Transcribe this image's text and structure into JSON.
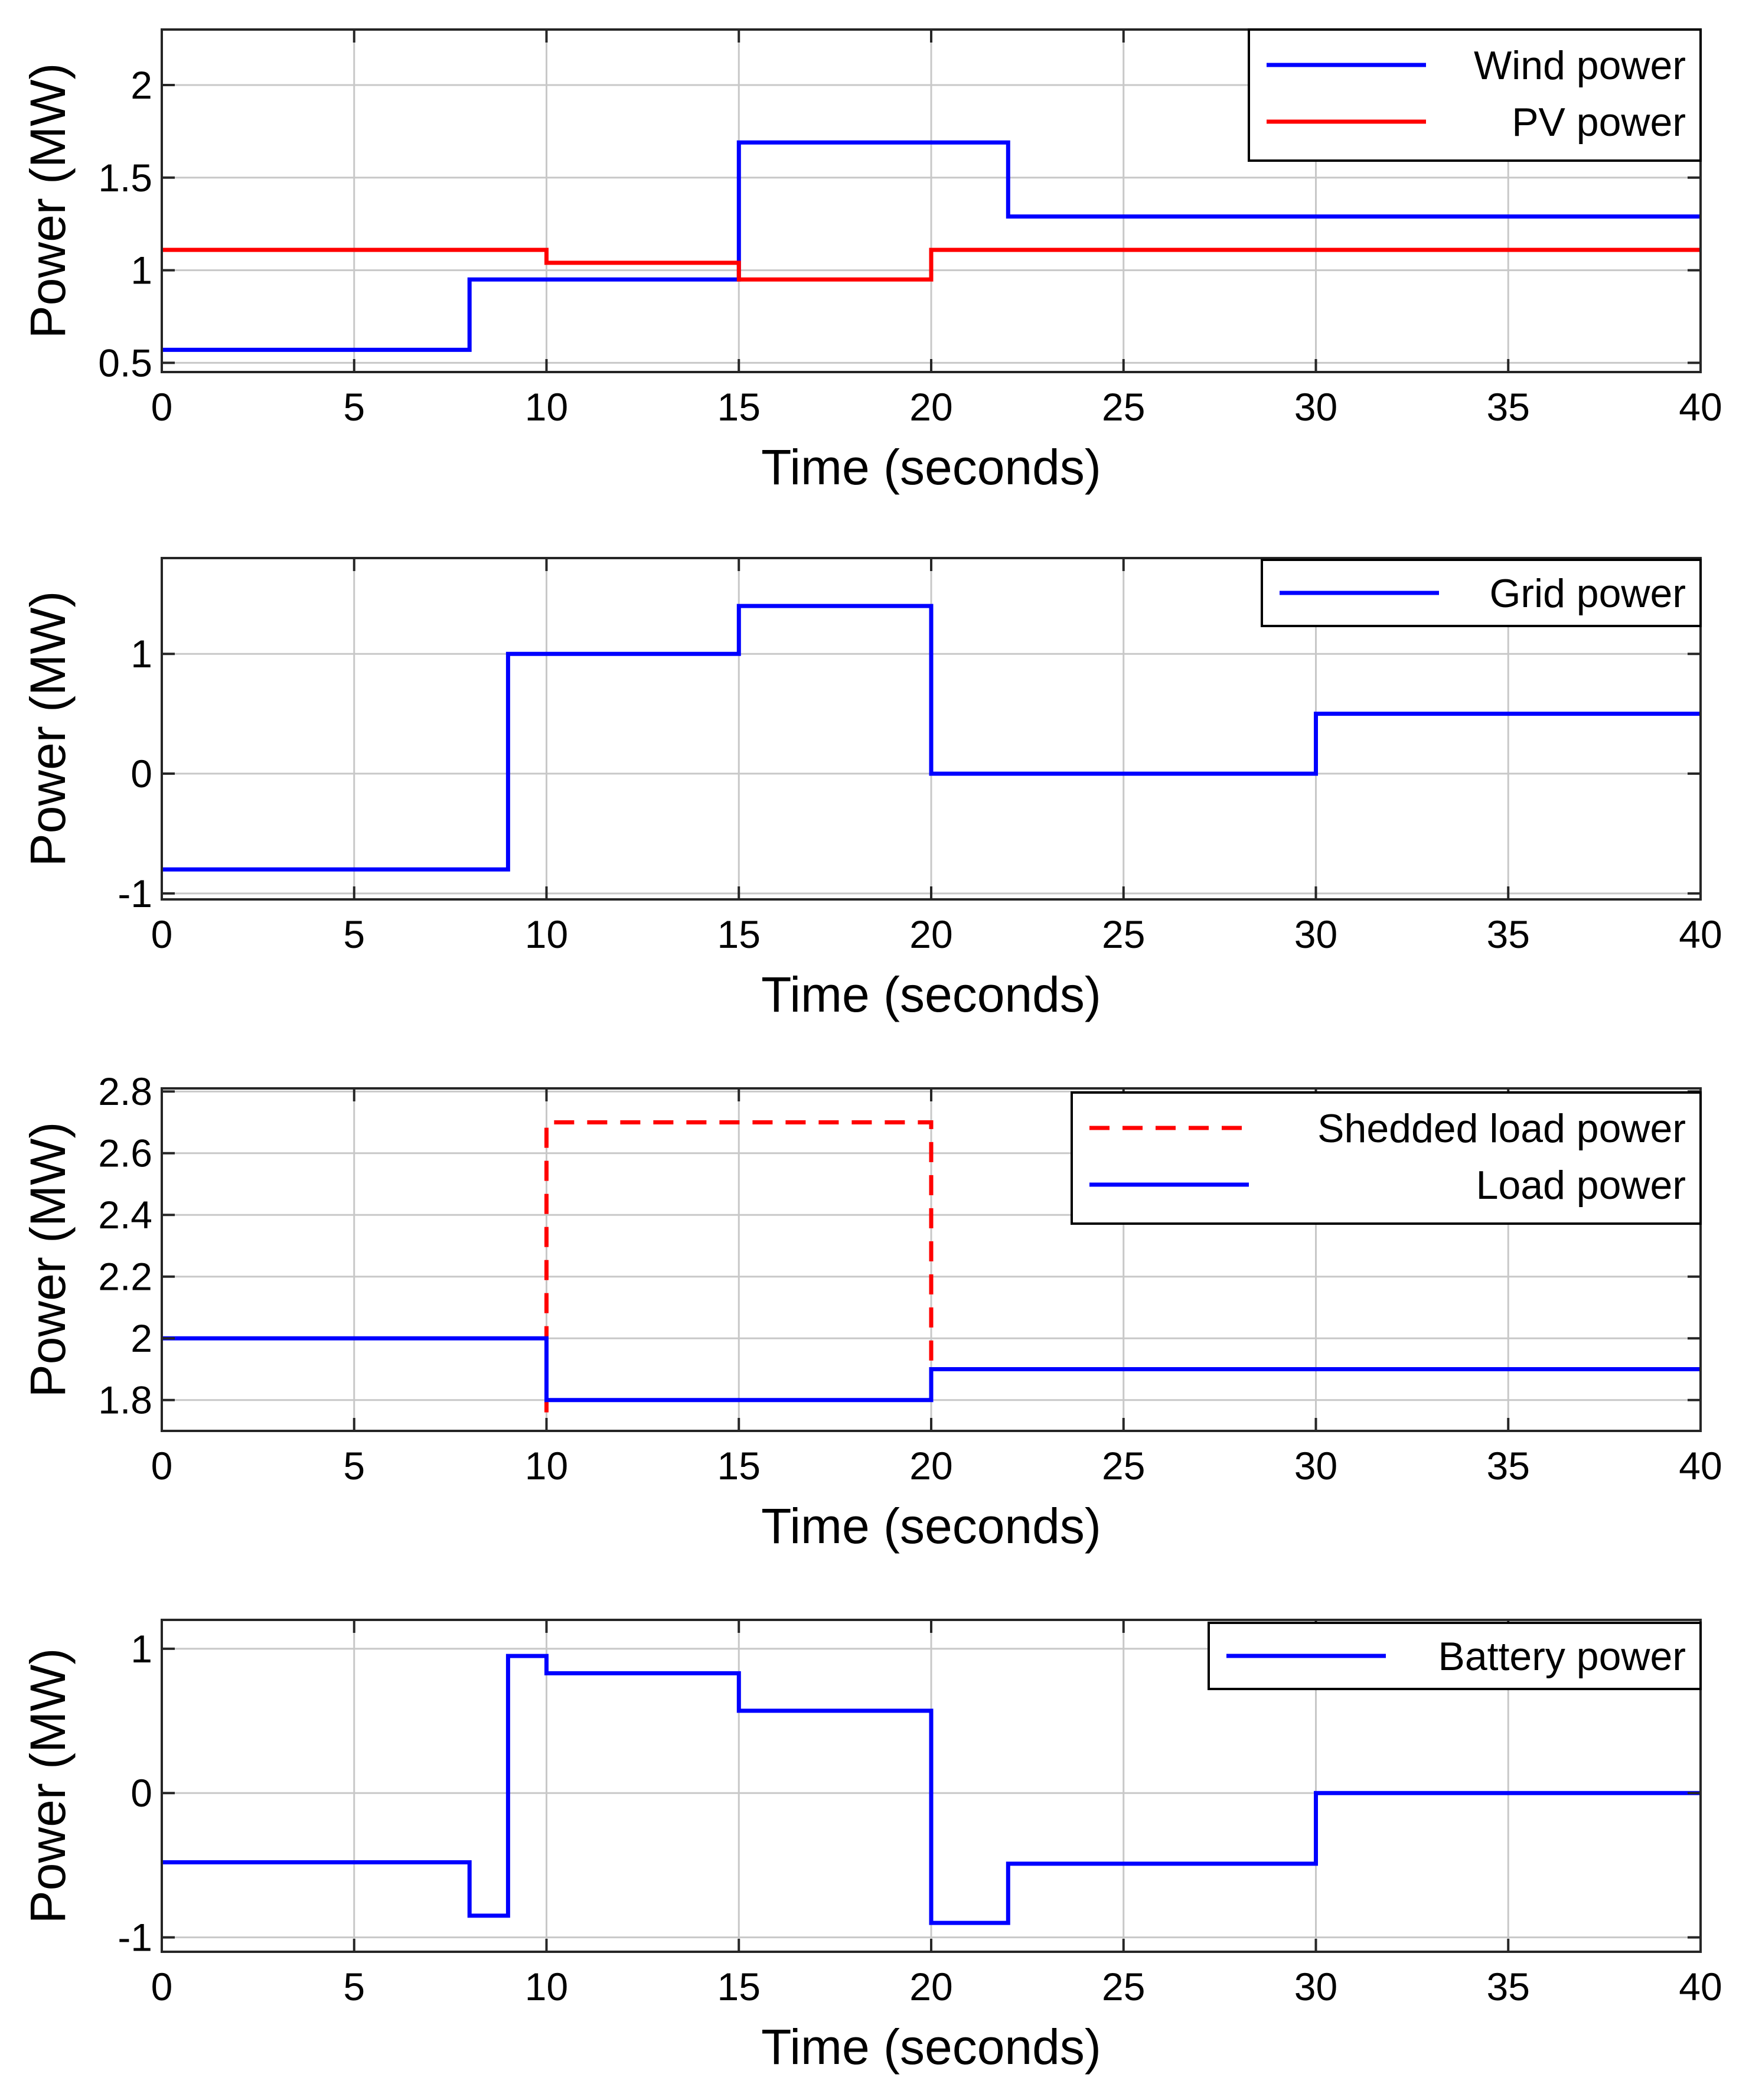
{
  "colors": {
    "blue": "#0000ff",
    "red": "#ff0000",
    "grid": "#c8c8c8",
    "axes": "#262626"
  },
  "chart_data": [
    {
      "type": "line",
      "xlabel": "Time (seconds)",
      "ylabel": "Power (MW)",
      "xlim": [
        0,
        40
      ],
      "ylim": [
        0.45,
        2.3
      ],
      "xticks": [
        0,
        5,
        10,
        15,
        20,
        25,
        30,
        35,
        40
      ],
      "yticks": [
        0.5,
        1,
        1.5,
        2
      ],
      "ytick_labels": [
        "0.5",
        "1",
        "1.5",
        "2"
      ],
      "grid": true,
      "legend_position": "top-right",
      "series": [
        {
          "name": "Wind power",
          "color": "#0000ff",
          "style": "solid",
          "x": [
            0,
            8,
            8,
            15,
            15,
            22,
            22,
            40
          ],
          "y": [
            0.57,
            0.57,
            0.95,
            0.95,
            1.69,
            1.69,
            1.29,
            1.29
          ]
        },
        {
          "name": "PV power",
          "color": "#ff0000",
          "style": "solid",
          "x": [
            0,
            10,
            10,
            15,
            15,
            20,
            20,
            40
          ],
          "y": [
            1.11,
            1.11,
            1.04,
            1.04,
            0.95,
            0.95,
            1.11,
            1.11
          ]
        }
      ]
    },
    {
      "type": "line",
      "xlabel": "Time (seconds)",
      "ylabel": "Power (MW)",
      "xlim": [
        0,
        40
      ],
      "ylim": [
        -1.05,
        1.8
      ],
      "xticks": [
        0,
        5,
        10,
        15,
        20,
        25,
        30,
        35,
        40
      ],
      "yticks": [
        -1,
        0,
        1
      ],
      "ytick_labels": [
        "-1",
        "0",
        "1"
      ],
      "grid": true,
      "legend_position": "top-right",
      "series": [
        {
          "name": "Grid power",
          "color": "#0000ff",
          "style": "solid",
          "x": [
            0,
            9,
            9,
            15,
            15,
            20,
            20,
            30,
            30,
            40
          ],
          "y": [
            -0.8,
            -0.8,
            1.0,
            1.0,
            1.4,
            1.4,
            0.0,
            0.0,
            0.5,
            0.5
          ]
        }
      ]
    },
    {
      "type": "line",
      "xlabel": "Time (seconds)",
      "ylabel": "Power (MW)",
      "xlim": [
        0,
        40
      ],
      "ylim": [
        1.7,
        2.81
      ],
      "xticks": [
        0,
        5,
        10,
        15,
        20,
        25,
        30,
        35,
        40
      ],
      "yticks": [
        1.8,
        2,
        2.2,
        2.4,
        2.6,
        2.8
      ],
      "ytick_labels": [
        "1.8",
        "2",
        "2.2",
        "2.4",
        "2.6",
        "2.8"
      ],
      "grid": true,
      "legend_position": "top-right",
      "series": [
        {
          "name": "Shedded load power",
          "color": "#ff0000",
          "style": "dashed",
          "x": [
            10,
            10,
            20,
            20
          ],
          "y": [
            1.76,
            2.7,
            2.7,
            1.9
          ]
        },
        {
          "name": "Load power",
          "color": "#0000ff",
          "style": "solid",
          "x": [
            0,
            10,
            10,
            20,
            20,
            40
          ],
          "y": [
            2.0,
            2.0,
            1.8,
            1.8,
            1.9,
            1.9
          ]
        }
      ]
    },
    {
      "type": "line",
      "xlabel": "Time (seconds)",
      "ylabel": "Power (MW)",
      "xlim": [
        0,
        40
      ],
      "ylim": [
        -1.1,
        1.2
      ],
      "xticks": [
        0,
        5,
        10,
        15,
        20,
        25,
        30,
        35,
        40
      ],
      "yticks": [
        -1,
        0,
        1
      ],
      "ytick_labels": [
        "-1",
        "0",
        "1"
      ],
      "grid": true,
      "legend_position": "top-right",
      "series": [
        {
          "name": "Battery power",
          "color": "#0000ff",
          "style": "solid",
          "x": [
            0,
            8,
            8,
            9,
            9,
            10,
            10,
            15,
            15,
            20,
            20,
            22,
            22,
            30,
            30,
            40
          ],
          "y": [
            -0.48,
            -0.48,
            -0.85,
            -0.85,
            0.95,
            0.95,
            0.83,
            0.83,
            0.57,
            0.57,
            -0.9,
            -0.9,
            -0.49,
            -0.49,
            0.0,
            0.0
          ]
        }
      ]
    }
  ]
}
